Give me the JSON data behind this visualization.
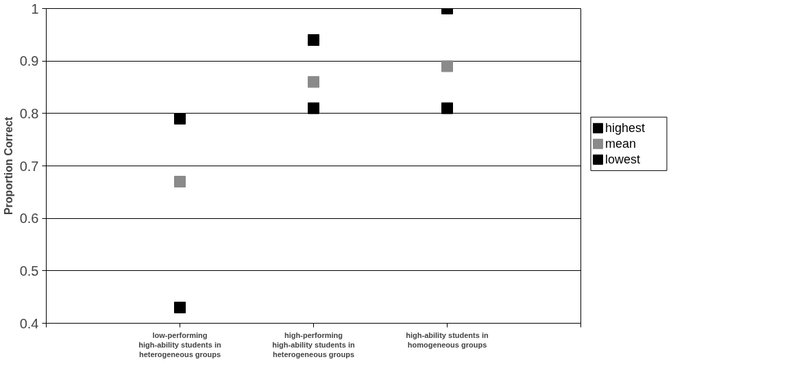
{
  "chart_data": {
    "type": "scatter",
    "ylabel": "Proportion Correct",
    "categories": [
      "low-performing\nhigh-ability students in\nheterogeneous groups",
      "high-performing\nhigh-ability students in\nheterogeneous groups",
      "high-ability students in\nhomogeneous groups"
    ],
    "series": [
      {
        "name": "highest",
        "color": "#000000",
        "values": [
          0.79,
          0.94,
          1.0
        ]
      },
      {
        "name": "mean",
        "color": "#8a8a8a",
        "values": [
          0.67,
          0.86,
          0.89
        ]
      },
      {
        "name": "lowest",
        "color": "#000000",
        "values": [
          0.43,
          0.81,
          0.81
        ]
      }
    ],
    "ylim": [
      0.4,
      1.0
    ],
    "yticks": [
      0.4,
      0.5,
      0.6,
      0.7,
      0.8,
      0.9,
      1
    ],
    "grid": "y",
    "legend": "right",
    "marker": "square"
  }
}
